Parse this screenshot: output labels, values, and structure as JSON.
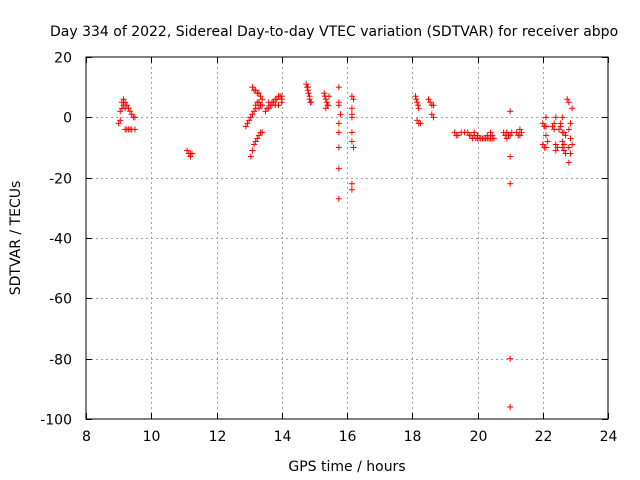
{
  "chart_data": {
    "type": "scatter",
    "title": "Day 334 of 2022, Sidereal Day-to-day VTEC variation (SDTVAR) for receiver abpo",
    "xlabel": "GPS time / hours",
    "ylabel": "SDTVAR / TECUs",
    "xlim": [
      8,
      24
    ],
    "ylim": [
      -100,
      20
    ],
    "xticks": [
      8,
      10,
      12,
      14,
      16,
      18,
      20,
      22,
      24
    ],
    "yticks": [
      -100,
      -80,
      -60,
      -40,
      -20,
      0,
      20
    ],
    "grid": true,
    "marker": "+",
    "color": "#ff0000",
    "series": [
      {
        "name": "SDTVAR",
        "points": [
          [
            9.0,
            -2
          ],
          [
            9.05,
            2
          ],
          [
            9.05,
            -1
          ],
          [
            9.1,
            3
          ],
          [
            9.1,
            5
          ],
          [
            9.15,
            6
          ],
          [
            9.15,
            4
          ],
          [
            9.2,
            5
          ],
          [
            9.2,
            3
          ],
          [
            9.25,
            4
          ],
          [
            9.3,
            3
          ],
          [
            9.35,
            2
          ],
          [
            9.4,
            1
          ],
          [
            9.45,
            0
          ],
          [
            9.5,
            0
          ],
          [
            9.2,
            -4
          ],
          [
            9.25,
            -4
          ],
          [
            9.3,
            -4
          ],
          [
            9.35,
            -4
          ],
          [
            9.4,
            -4
          ],
          [
            9.5,
            -4
          ],
          [
            11.1,
            -11
          ],
          [
            11.15,
            -12
          ],
          [
            11.2,
            -13
          ],
          [
            11.2,
            -12
          ],
          [
            11.25,
            -12
          ],
          [
            12.9,
            -3
          ],
          [
            12.95,
            -2
          ],
          [
            13.0,
            -1
          ],
          [
            13.05,
            0
          ],
          [
            13.1,
            1
          ],
          [
            13.15,
            2
          ],
          [
            13.2,
            3
          ],
          [
            13.2,
            4
          ],
          [
            13.25,
            5
          ],
          [
            13.3,
            5
          ],
          [
            13.3,
            3
          ],
          [
            13.35,
            4
          ],
          [
            13.4,
            4
          ],
          [
            13.05,
            -13
          ],
          [
            13.1,
            -11
          ],
          [
            13.15,
            -9
          ],
          [
            13.2,
            -8
          ],
          [
            13.25,
            -7
          ],
          [
            13.3,
            -6
          ],
          [
            13.35,
            -5
          ],
          [
            13.4,
            -5
          ],
          [
            13.1,
            10
          ],
          [
            13.15,
            9
          ],
          [
            13.2,
            9
          ],
          [
            13.25,
            8
          ],
          [
            13.3,
            8
          ],
          [
            13.35,
            7
          ],
          [
            13.4,
            6
          ],
          [
            13.5,
            2
          ],
          [
            13.55,
            3
          ],
          [
            13.6,
            3
          ],
          [
            13.65,
            4
          ],
          [
            13.7,
            5
          ],
          [
            13.75,
            5
          ],
          [
            13.8,
            6
          ],
          [
            13.85,
            6
          ],
          [
            13.9,
            7
          ],
          [
            13.95,
            7
          ],
          [
            14.0,
            7
          ],
          [
            14.0,
            6
          ],
          [
            13.6,
            5
          ],
          [
            13.7,
            4
          ],
          [
            13.8,
            4
          ],
          [
            13.9,
            4
          ],
          [
            14.0,
            5
          ],
          [
            14.75,
            11
          ],
          [
            14.78,
            10
          ],
          [
            14.8,
            9
          ],
          [
            14.82,
            8
          ],
          [
            14.85,
            7
          ],
          [
            14.85,
            6
          ],
          [
            14.88,
            5
          ],
          [
            14.9,
            5
          ],
          [
            14.8,
            10
          ],
          [
            15.3,
            8
          ],
          [
            15.32,
            7
          ],
          [
            15.35,
            6
          ],
          [
            15.38,
            5
          ],
          [
            15.4,
            4
          ],
          [
            15.42,
            4
          ],
          [
            15.45,
            7
          ],
          [
            15.35,
            3
          ],
          [
            15.75,
            10
          ],
          [
            15.75,
            5
          ],
          [
            15.75,
            4
          ],
          [
            15.75,
            -2
          ],
          [
            15.75,
            -5
          ],
          [
            15.75,
            -10
          ],
          [
            15.75,
            -17
          ],
          [
            15.75,
            -27
          ],
          [
            15.8,
            1
          ],
          [
            16.15,
            7
          ],
          [
            16.2,
            6
          ],
          [
            16.15,
            3
          ],
          [
            16.15,
            1
          ],
          [
            16.15,
            0
          ],
          [
            16.15,
            -5
          ],
          [
            16.15,
            -8
          ],
          [
            16.2,
            -10
          ],
          [
            16.15,
            -22
          ],
          [
            16.15,
            -24
          ],
          [
            18.1,
            7
          ],
          [
            18.12,
            6
          ],
          [
            18.15,
            5
          ],
          [
            18.18,
            4
          ],
          [
            18.2,
            3
          ],
          [
            18.15,
            -1
          ],
          [
            18.2,
            -2
          ],
          [
            18.25,
            -2
          ],
          [
            18.5,
            6
          ],
          [
            18.55,
            5
          ],
          [
            18.6,
            4
          ],
          [
            18.65,
            4
          ],
          [
            18.6,
            1
          ],
          [
            18.65,
            0
          ],
          [
            19.3,
            -5
          ],
          [
            19.35,
            -6
          ],
          [
            19.4,
            -6
          ],
          [
            19.5,
            -5
          ],
          [
            19.6,
            -5
          ],
          [
            19.7,
            -5
          ],
          [
            19.75,
            -6
          ],
          [
            19.8,
            -6
          ],
          [
            19.85,
            -7
          ],
          [
            19.9,
            -6
          ],
          [
            19.95,
            -7
          ],
          [
            20.0,
            -7
          ],
          [
            20.05,
            -7
          ],
          [
            20.1,
            -7
          ],
          [
            20.15,
            -7
          ],
          [
            20.2,
            -7
          ],
          [
            20.25,
            -7
          ],
          [
            20.3,
            -7
          ],
          [
            20.35,
            -7
          ],
          [
            20.4,
            -7
          ],
          [
            20.45,
            -7
          ],
          [
            20.5,
            -7
          ],
          [
            19.9,
            -5
          ],
          [
            20.0,
            -6
          ],
          [
            20.3,
            -6
          ],
          [
            20.45,
            -6
          ],
          [
            20.4,
            -5
          ],
          [
            20.8,
            -5
          ],
          [
            20.85,
            -6
          ],
          [
            20.9,
            -7
          ],
          [
            20.95,
            -6
          ],
          [
            21.0,
            -6
          ],
          [
            21.05,
            -5
          ],
          [
            20.9,
            -5
          ],
          [
            21.0,
            2
          ],
          [
            21.0,
            -13
          ],
          [
            21.0,
            -22
          ],
          [
            21.0,
            -80
          ],
          [
            21.0,
            -96
          ],
          [
            21.2,
            -5
          ],
          [
            21.25,
            -6
          ],
          [
            21.3,
            -6
          ],
          [
            21.35,
            -5
          ],
          [
            21.3,
            -4
          ],
          [
            22.0,
            -2
          ],
          [
            22.05,
            -3
          ],
          [
            22.1,
            -3
          ],
          [
            22.0,
            -9
          ],
          [
            22.05,
            -10
          ],
          [
            22.1,
            -10
          ],
          [
            22.15,
            -8
          ],
          [
            22.1,
            -6
          ],
          [
            22.1,
            0
          ],
          [
            22.3,
            -3
          ],
          [
            22.35,
            -4
          ],
          [
            22.4,
            -9
          ],
          [
            22.45,
            -10
          ],
          [
            22.4,
            -11
          ],
          [
            22.35,
            -2
          ],
          [
            22.4,
            0
          ],
          [
            22.5,
            -4
          ],
          [
            22.55,
            -3
          ],
          [
            22.6,
            -5
          ],
          [
            22.65,
            -5
          ],
          [
            22.7,
            -6
          ],
          [
            22.6,
            -8
          ],
          [
            22.65,
            -9
          ],
          [
            22.6,
            -10
          ],
          [
            22.65,
            -11
          ],
          [
            22.7,
            -12
          ],
          [
            22.55,
            -2
          ],
          [
            22.6,
            0
          ],
          [
            22.75,
            6
          ],
          [
            22.8,
            5
          ],
          [
            22.8,
            -4
          ],
          [
            22.85,
            -7
          ],
          [
            22.8,
            -10
          ],
          [
            22.85,
            -12
          ],
          [
            22.8,
            -15
          ],
          [
            22.9,
            3
          ],
          [
            22.85,
            -2
          ],
          [
            22.9,
            -9
          ]
        ]
      }
    ]
  }
}
